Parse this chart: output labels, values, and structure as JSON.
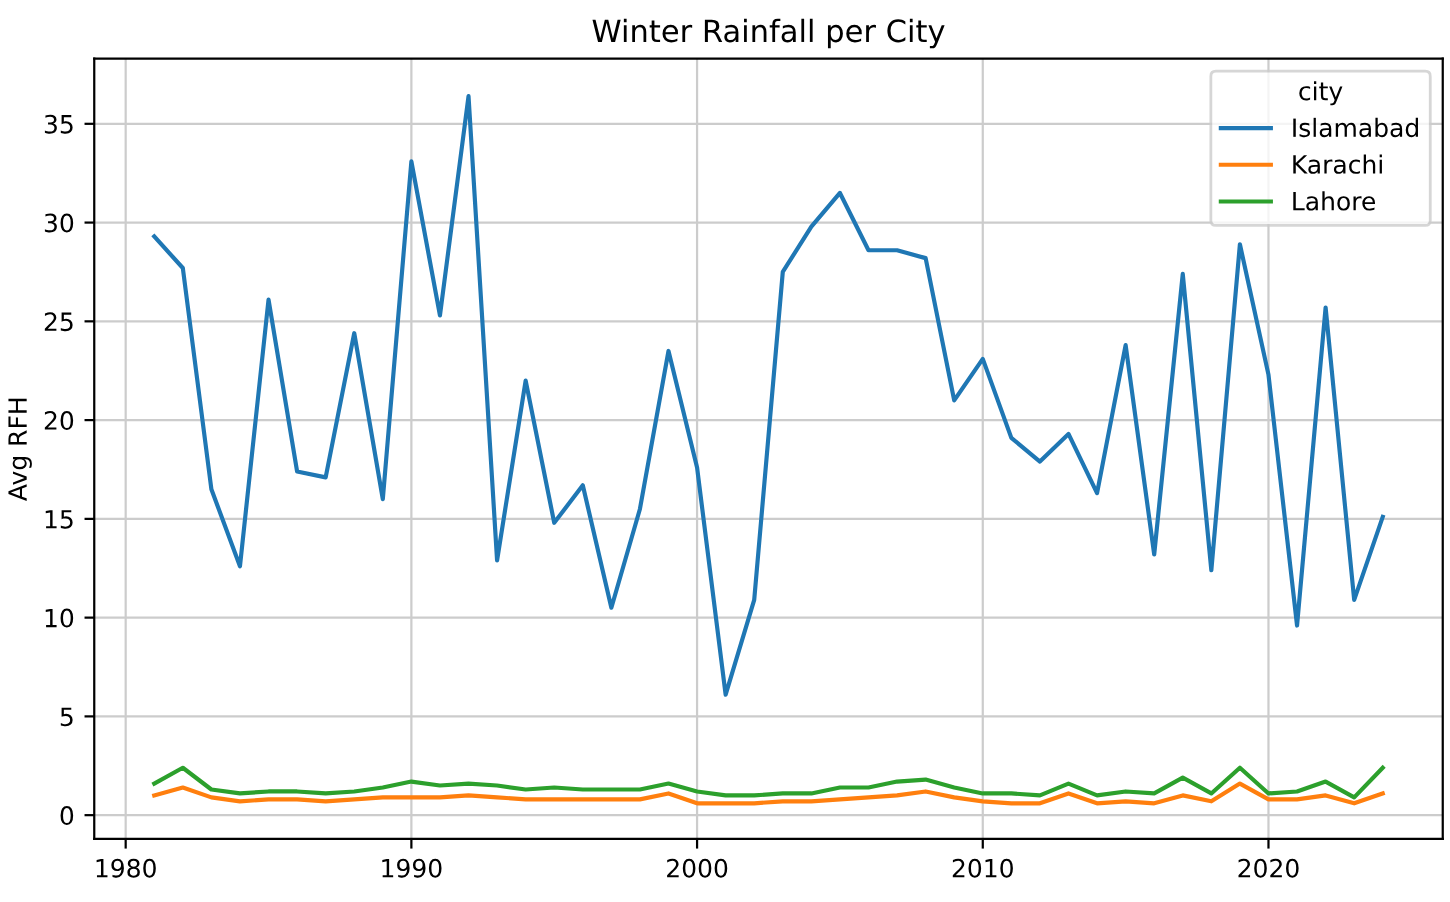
{
  "chart_data": {
    "type": "line",
    "title": "Winter Rainfall per City",
    "ylabel": "Avg RFH",
    "legend_title": "city",
    "legend": "top right",
    "grid": true,
    "x": [
      1981,
      1982,
      1983,
      1984,
      1985,
      1986,
      1987,
      1988,
      1989,
      1990,
      1991,
      1992,
      1993,
      1994,
      1995,
      1996,
      1997,
      1998,
      1999,
      2000,
      2001,
      2002,
      2003,
      2004,
      2005,
      2006,
      2007,
      2008,
      2009,
      2010,
      2011,
      2012,
      2013,
      2014,
      2015,
      2016,
      2017,
      2018,
      2019,
      2020,
      2021,
      2022,
      2023,
      2024
    ],
    "series": [
      {
        "name": "Islamabad",
        "color": "#1f77b4",
        "values": [
          29.3,
          27.7,
          16.5,
          12.6,
          26.1,
          17.4,
          17.1,
          24.4,
          16.0,
          33.1,
          25.3,
          36.4,
          12.9,
          22.0,
          14.8,
          16.7,
          10.5,
          15.5,
          23.5,
          17.6,
          6.1,
          10.9,
          27.5,
          29.8,
          31.5,
          28.6,
          28.6,
          28.2,
          21.0,
          23.1,
          19.1,
          17.9,
          19.3,
          16.3,
          23.8,
          13.2,
          27.4,
          12.4,
          28.9,
          22.3,
          9.6,
          25.7,
          10.9,
          15.1
        ]
      },
      {
        "name": "Karachi",
        "color": "#ff7f0e",
        "values": [
          1.0,
          1.4,
          0.9,
          0.7,
          0.8,
          0.8,
          0.7,
          0.8,
          0.9,
          0.9,
          0.9,
          1.0,
          0.9,
          0.8,
          0.8,
          0.8,
          0.8,
          0.8,
          1.1,
          0.6,
          0.6,
          0.6,
          0.7,
          0.7,
          0.8,
          0.9,
          1.0,
          1.2,
          0.9,
          0.7,
          0.6,
          0.6,
          1.1,
          0.6,
          0.7,
          0.6,
          1.0,
          0.7,
          1.6,
          0.8,
          0.8,
          1.0,
          0.6,
          1.1
        ]
      },
      {
        "name": "Lahore",
        "color": "#2ca02c",
        "values": [
          1.6,
          2.4,
          1.3,
          1.1,
          1.2,
          1.2,
          1.1,
          1.2,
          1.4,
          1.7,
          1.5,
          1.6,
          1.5,
          1.3,
          1.4,
          1.3,
          1.3,
          1.3,
          1.6,
          1.2,
          1.0,
          1.0,
          1.1,
          1.1,
          1.4,
          1.4,
          1.7,
          1.8,
          1.4,
          1.1,
          1.1,
          1.0,
          1.6,
          1.0,
          1.2,
          1.1,
          1.9,
          1.1,
          2.4,
          1.1,
          1.2,
          1.7,
          0.9,
          2.4
        ]
      }
    ],
    "xlim": [
      1978.9,
      2026.1
    ],
    "ylim": [
      -1.2,
      38.3
    ],
    "xticks": [
      1980,
      1990,
      2000,
      2010,
      2020
    ],
    "yticks": [
      0,
      5,
      10,
      15,
      20,
      25,
      30,
      35
    ]
  }
}
